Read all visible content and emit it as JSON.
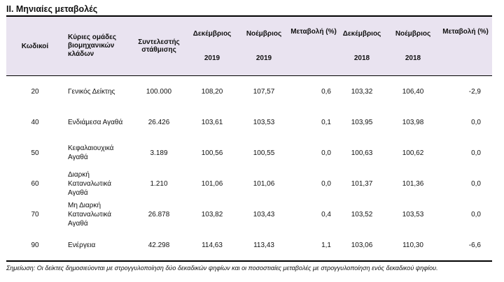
{
  "title": "II. Μηνιαίες μεταβολές",
  "header": {
    "code": "Κωδικοί",
    "groups": "Κύριες ομάδες βιομηχανικών κλάδων",
    "weight": "Συντελεστής στάθμισης",
    "dec": "Δεκέμβριος",
    "nov": "Νοέμβριος",
    "change": "Μεταβολή (%)",
    "y2019": "2019",
    "y2018": "2018"
  },
  "rows": [
    {
      "code": "20",
      "name": "Γενικός Δείκτης",
      "weight": "100.000",
      "dec19": "108,20",
      "nov19": "107,57",
      "chg19": "0,6",
      "dec18": "103,32",
      "nov18": "106,40",
      "chg18": "-2,9"
    },
    {
      "code": "40",
      "name": "Ενδιάμεσα Αγαθά",
      "weight": "26.426",
      "dec19": "103,61",
      "nov19": "103,53",
      "chg19": "0,1",
      "dec18": "103,95",
      "nov18": "103,98",
      "chg18": "0,0"
    },
    {
      "code": "50",
      "name": "Κεφαλαιουχικά Αγαθά",
      "weight": "3.189",
      "dec19": "100,56",
      "nov19": "100,55",
      "chg19": "0,0",
      "dec18": "100,63",
      "nov18": "100,62",
      "chg18": "0,0"
    },
    {
      "code": "60",
      "name": "Διαρκή Καταναλωτικά Αγαθά",
      "weight": "1.210",
      "dec19": "101,06",
      "nov19": "101,06",
      "chg19": "0,0",
      "dec18": "101,37",
      "nov18": "101,36",
      "chg18": "0,0"
    },
    {
      "code": "70",
      "name": "Μη Διαρκή Καταναλωτικά Αγαθά",
      "weight": "26.878",
      "dec19": "103,82",
      "nov19": "103,43",
      "chg19": "0,4",
      "dec18": "103,52",
      "nov18": "103,53",
      "chg18": "0,0"
    },
    {
      "code": "90",
      "name": "Ενέργεια",
      "weight": "42.298",
      "dec19": "114,63",
      "nov19": "113,43",
      "chg19": "1,1",
      "dec18": "103,06",
      "nov18": "110,30",
      "chg18": "-6,6"
    }
  ],
  "note": "Σημείωση: Οι δείκτες δημοσιεύονται με στρογγυλοποίηση δύο δεκαδικών ψηφίων και οι ποσοστιαίες μεταβολές με στρογγυλοποίηση ενός δεκαδικού ψηφίου."
}
